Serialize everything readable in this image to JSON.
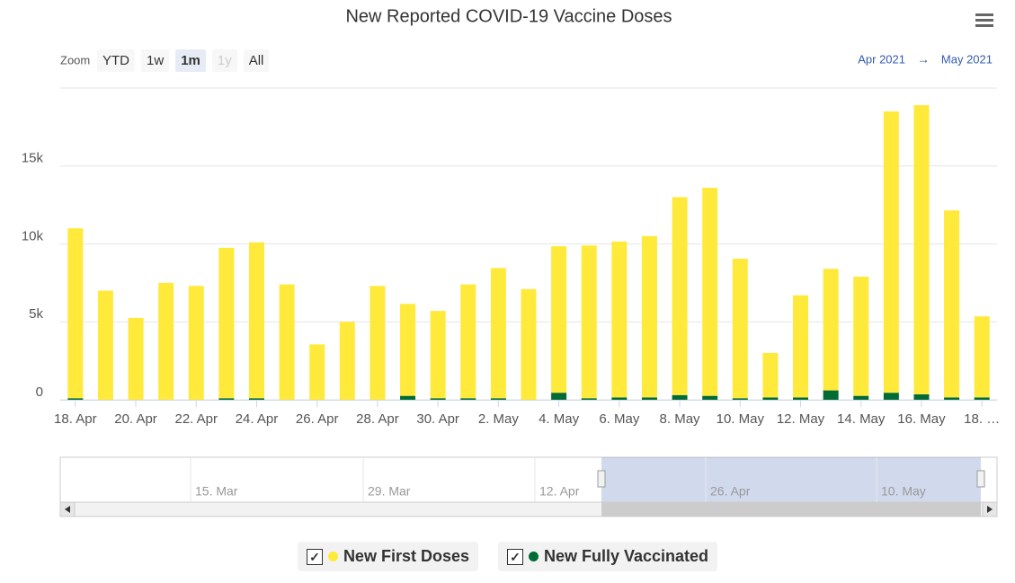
{
  "chart_data": {
    "type": "bar",
    "stacked": true,
    "title": "New Reported COVID-19 Vaccine Doses",
    "categories": [
      "18. Apr",
      null,
      "20. Apr",
      null,
      "22. Apr",
      null,
      "24. Apr",
      null,
      "26. Apr",
      null,
      "28. Apr",
      null,
      "30. Apr",
      null,
      "2. May",
      null,
      "4. May",
      null,
      "6. May",
      null,
      "8. May",
      null,
      "10. May",
      null,
      "12. May",
      null,
      "14. May",
      null,
      "16. May",
      null,
      "18. …"
    ],
    "series": [
      {
        "name": "New First Doses",
        "color": "#ffe93b",
        "values": [
          10900,
          7000,
          5250,
          7500,
          7300,
          9650,
          10000,
          7400,
          3550,
          5000,
          7300,
          5900,
          5600,
          7300,
          8350,
          7100,
          9400,
          9800,
          10000,
          10350,
          12700,
          13350,
          8950,
          2850,
          6550,
          7800,
          7650,
          18050,
          18550,
          12000,
          5200
        ]
      },
      {
        "name": "New Fully Vaccinated",
        "color": "#006b35",
        "values": [
          100,
          0,
          0,
          0,
          0,
          100,
          100,
          0,
          0,
          0,
          0,
          250,
          100,
          100,
          100,
          0,
          450,
          100,
          150,
          150,
          300,
          250,
          100,
          150,
          150,
          600,
          250,
          450,
          350,
          150,
          150
        ]
      }
    ],
    "ylim": [
      0,
      20000
    ],
    "yticks": [
      0,
      {
        "value": 5000,
        "label": "5k"
      },
      {
        "value": 10000,
        "label": "10k"
      },
      {
        "value": 15000,
        "label": "15k"
      }
    ],
    "grid": true
  },
  "ui": {
    "zoom_label": "Zoom",
    "zoom_buttons": [
      "YTD",
      "1w",
      "1m",
      "1y",
      "All"
    ],
    "active_zoom": "1m",
    "range_from": "Apr 2021",
    "range_arrow": "→",
    "range_to": "May 2021",
    "navigator_labels": [
      "15. Mar",
      "29. Mar",
      "12. Apr",
      "26. Apr",
      "10. May"
    ]
  }
}
